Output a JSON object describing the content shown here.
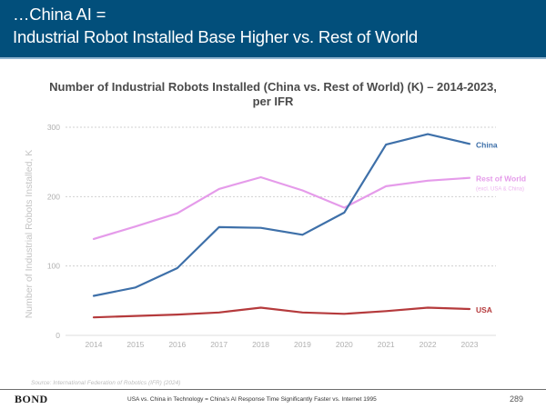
{
  "header": {
    "line1": "…China AI =",
    "line2": "Industrial Robot Installed Base Higher vs. Rest of World"
  },
  "colors": {
    "header_bg": "#024F7B",
    "china": "#3E70A9",
    "rest_of_world": "#E59BEA",
    "usa": "#B53A3C",
    "grid": "#cccccc",
    "tick_text": "#b0b0b0"
  },
  "chart_data": {
    "type": "line",
    "title": "Number of Industrial Robots Installed (China vs. Rest of World) (K) – 2014-2023, per IFR",
    "title_lines": [
      "Number of Industrial Robots Installed (China vs. Rest of World) (K) – 2014-2023,",
      "per IFR"
    ],
    "xlabel": "",
    "ylabel": "Number of Industrial Robots Installed, K",
    "x": [
      "2014",
      "2015",
      "2016",
      "2017",
      "2018",
      "2019",
      "2020",
      "2021",
      "2022",
      "2023"
    ],
    "ylim": [
      0,
      300
    ],
    "yticks": [
      0,
      100,
      200,
      300
    ],
    "grid": true,
    "legend": "inline-right",
    "series": [
      {
        "name": "China",
        "sublabel": "",
        "color": "#3E70A9",
        "values": [
          57,
          69,
          97,
          156,
          155,
          145,
          177,
          275,
          290,
          276
        ]
      },
      {
        "name": "Rest of World",
        "sublabel": "(excl. USA & China)",
        "color": "#E59BEA",
        "values": [
          139,
          157,
          176,
          211,
          228,
          209,
          184,
          215,
          223,
          227
        ]
      },
      {
        "name": "USA",
        "sublabel": "",
        "color": "#B53A3C",
        "values": [
          26,
          28,
          30,
          33,
          40,
          33,
          31,
          35,
          40,
          38
        ]
      }
    ]
  },
  "source": "Source: International Federation of Robotics (IFR) (2024)",
  "footer": {
    "logo": "BOND",
    "text": "USA vs. China in Technology = China's AI Response Time Significantly Faster vs. Internet 1995",
    "page": "289"
  }
}
